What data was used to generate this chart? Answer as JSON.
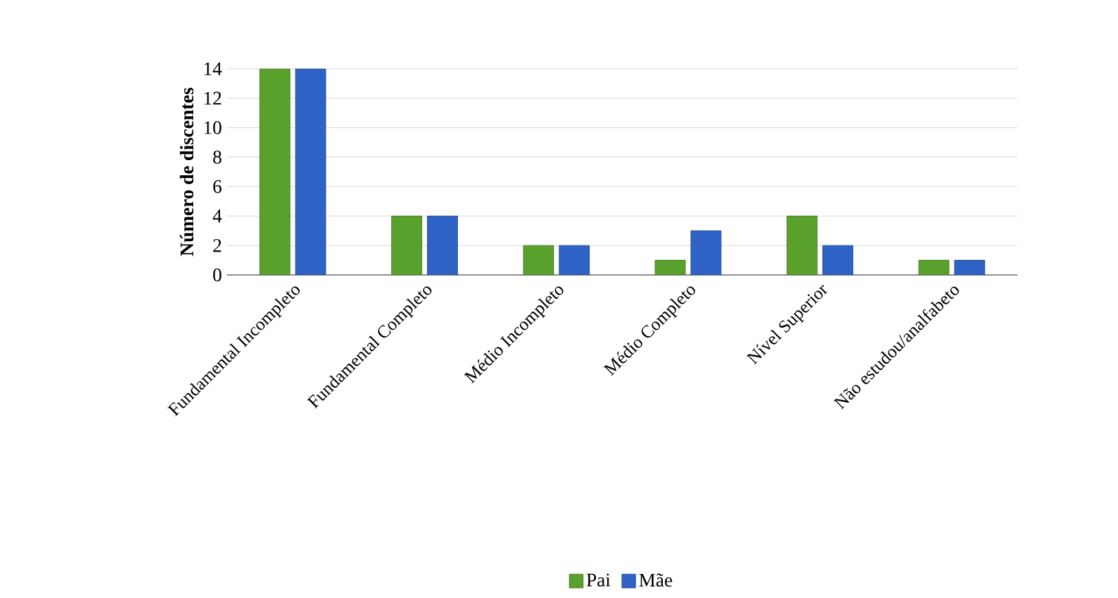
{
  "chart_data": {
    "type": "bar",
    "ylabel": "Número de discentes",
    "categories": [
      "Fundamental Incompleto",
      "Fundamental Completo",
      "Médio Incompleto",
      "Médio Completo",
      "Nível Superior",
      "Não estudou/analfabeto"
    ],
    "series": [
      {
        "name": "Pai",
        "color": "#5aa02c",
        "values": [
          14,
          4,
          2,
          1,
          4,
          1
        ]
      },
      {
        "name": "Mãe",
        "color": "#2e62c4",
        "values": [
          14,
          4,
          2,
          3,
          2,
          1
        ]
      }
    ],
    "ylim": [
      0,
      14
    ],
    "yticks": [
      0,
      2,
      4,
      6,
      8,
      10,
      12,
      14
    ],
    "grid": "y",
    "legend": "bottom"
  }
}
